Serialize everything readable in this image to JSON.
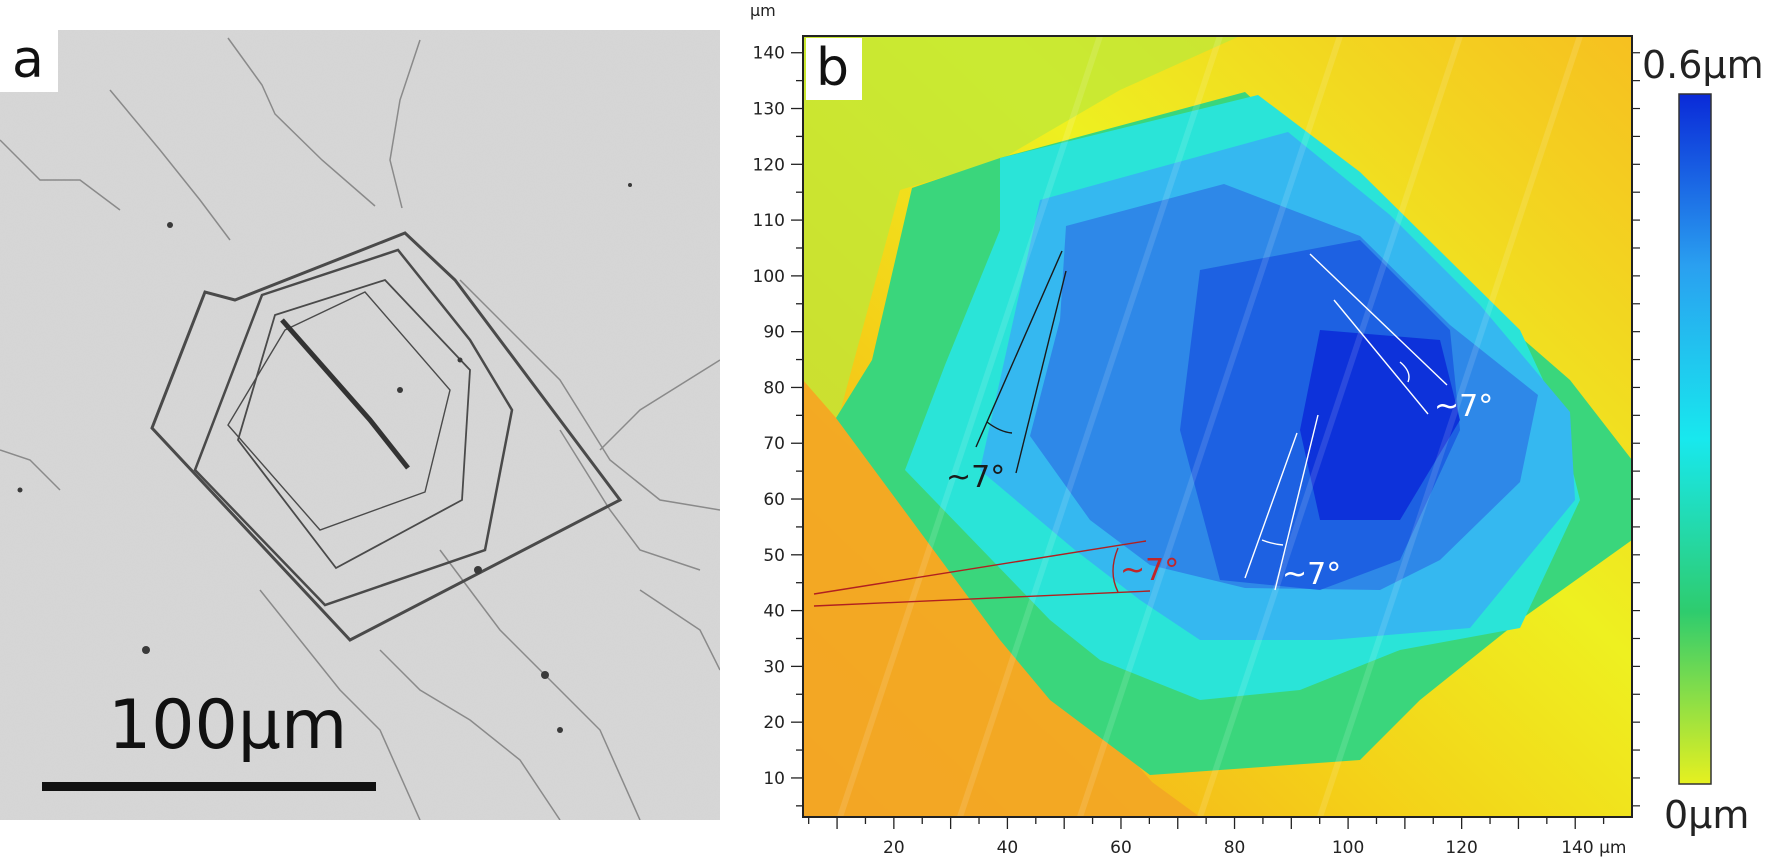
{
  "panel_a": {
    "label": "a",
    "scale_bar_text": "100μm"
  },
  "panel_b": {
    "label": "b",
    "axis_unit": "μm",
    "x_ticks": [
      "20",
      "40",
      "60",
      "80",
      "100",
      "120",
      "140 μm"
    ],
    "x_tick_values": [
      20,
      40,
      60,
      80,
      100,
      120,
      140
    ],
    "y_ticks": [
      "10",
      "20",
      "30",
      "40",
      "50",
      "60",
      "70",
      "80",
      "90",
      "100",
      "110",
      "120",
      "130",
      "140"
    ],
    "y_tick_values": [
      10,
      20,
      30,
      40,
      50,
      60,
      70,
      80,
      90,
      100,
      110,
      120,
      130,
      140
    ],
    "x_range": [
      4,
      150
    ],
    "y_range": [
      3,
      143
    ],
    "angle_labels": [
      "~7°",
      "~7°",
      "~7°",
      "~7°"
    ],
    "colorbar": {
      "max_label": "0.6μm",
      "min_label": "0μm",
      "colors": [
        "#e6f020",
        "#2ecc6e",
        "#18e8ee",
        "#2aa0f0",
        "#0a2ad8"
      ]
    },
    "colors": {
      "black_lines": "#1a1a1a",
      "white_lines": "#ffffff",
      "red_lines": "#b02020",
      "red_text": "#c0262a"
    }
  }
}
